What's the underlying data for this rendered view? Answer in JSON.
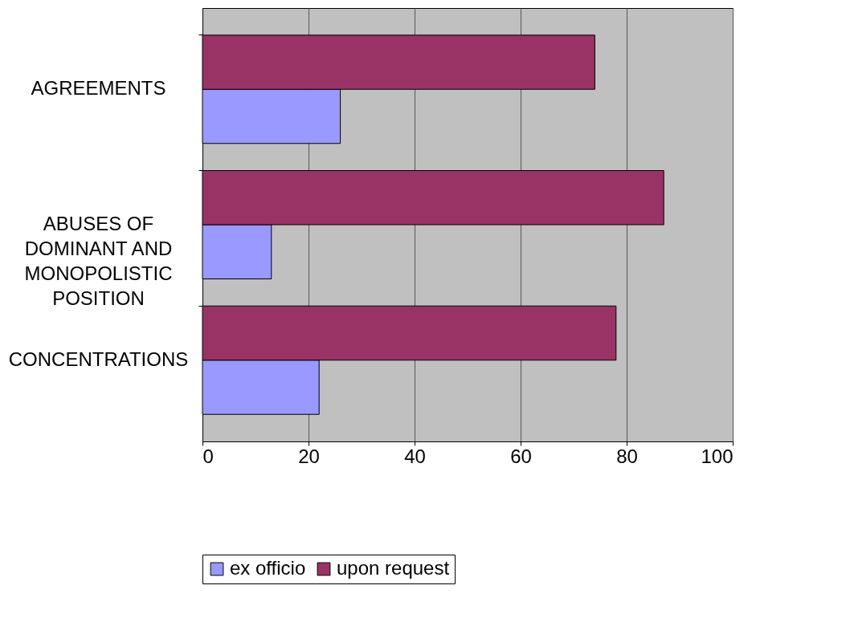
{
  "chart_data": {
    "type": "bar",
    "orientation": "horizontal",
    "categories": [
      "AGREEMENTS",
      "ABUSES OF DOMINANT AND MONOPOLISTIC POSITION",
      "CONCENTRATIONS"
    ],
    "series": [
      {
        "name": "ex officio",
        "color": "#9999ff",
        "values": [
          26,
          13,
          22
        ]
      },
      {
        "name": "upon request",
        "color": "#993366",
        "values": [
          74,
          87,
          78
        ]
      }
    ],
    "xlim": [
      0,
      100
    ],
    "xticks": [
      0,
      20,
      40,
      60,
      80,
      100
    ],
    "grid": "x",
    "legend": "bottom"
  }
}
